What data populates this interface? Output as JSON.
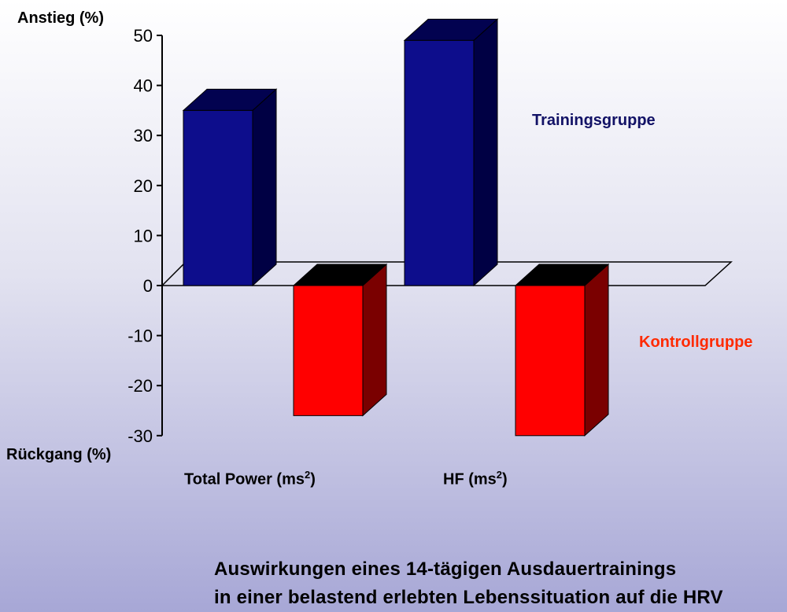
{
  "chart_data": {
    "type": "bar",
    "style": "3d",
    "categories": [
      {
        "label": "Total Power (ms",
        "sup": "2",
        "close": ")"
      },
      {
        "label": "HF (ms",
        "sup": "2",
        "close": ")"
      }
    ],
    "series": [
      {
        "name": "Trainingsgruppe",
        "values": [
          35,
          49
        ],
        "color": "#0d0d8c",
        "side_color": "#000044",
        "top_color": "#020250"
      },
      {
        "name": "Kontrollgruppe",
        "values": [
          -26,
          -30
        ],
        "color": "#ff0000",
        "side_color": "#7a0000",
        "top_color": "#000000"
      }
    ],
    "ylabel_top": "Anstieg (%)",
    "ylabel_bottom": "Rückgang (%)",
    "ylim": [
      -30,
      50
    ],
    "yticks": [
      50,
      40,
      30,
      20,
      10,
      0,
      -10,
      -20,
      -30
    ],
    "grid": false,
    "legend_placement": "right, next to each series"
  },
  "caption": {
    "line1": "Auswirkungen eines 14-tägigen Ausdauertrainings",
    "line2": "in einer belastend erlebten Lebenssituation auf die HRV"
  }
}
